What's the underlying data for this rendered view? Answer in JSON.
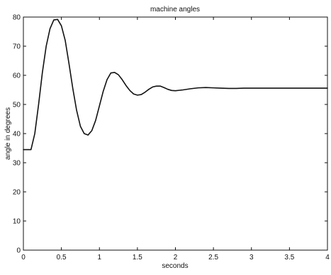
{
  "chart_data": {
    "type": "line",
    "title": "machine angles",
    "xlabel": "seconds",
    "ylabel": "angle in degrees",
    "xlim": [
      0,
      4
    ],
    "ylim": [
      0,
      80
    ],
    "x_ticks": [
      0,
      0.5,
      1,
      1.5,
      2,
      2.5,
      3,
      3.5,
      4
    ],
    "x_tick_labels": [
      "0",
      "0.5",
      "1",
      "1.5",
      "2",
      "2.5",
      "3",
      "3.5",
      "4"
    ],
    "y_ticks": [
      0,
      10,
      20,
      30,
      40,
      50,
      60,
      70,
      80
    ],
    "y_tick_labels": [
      "0",
      "10",
      "20",
      "30",
      "40",
      "50",
      "60",
      "70",
      "80"
    ],
    "grid": false,
    "series": [
      {
        "color": "#111111",
        "x": [
          0,
          0.1,
          0.15,
          0.2,
          0.25,
          0.3,
          0.35,
          0.4,
          0.45,
          0.5,
          0.55,
          0.6,
          0.65,
          0.7,
          0.75,
          0.8,
          0.85,
          0.9,
          0.95,
          1.0,
          1.05,
          1.1,
          1.15,
          1.2,
          1.25,
          1.3,
          1.35,
          1.4,
          1.45,
          1.5,
          1.55,
          1.6,
          1.65,
          1.7,
          1.75,
          1.8,
          1.85,
          1.9,
          1.95,
          2.0,
          2.1,
          2.2,
          2.3,
          2.4,
          2.5,
          2.6,
          2.7,
          2.8,
          2.9,
          3.0,
          3.1,
          3.2,
          3.4,
          3.6,
          3.8,
          4.0
        ],
        "y": [
          34.5,
          34.5,
          40,
          50,
          61,
          70,
          76,
          79,
          79.2,
          77,
          72,
          64,
          55.5,
          48,
          42.5,
          40,
          39.5,
          41,
          44.5,
          49.5,
          54.5,
          58.5,
          60.8,
          61,
          60.2,
          58.5,
          56.5,
          54.8,
          53.6,
          53.2,
          53.4,
          54.2,
          55.2,
          56,
          56.3,
          56.3,
          55.8,
          55.2,
          54.8,
          54.7,
          55,
          55.4,
          55.7,
          55.8,
          55.7,
          55.6,
          55.5,
          55.5,
          55.6,
          55.6,
          55.6,
          55.6,
          55.6,
          55.6,
          55.6,
          55.6
        ]
      }
    ]
  }
}
